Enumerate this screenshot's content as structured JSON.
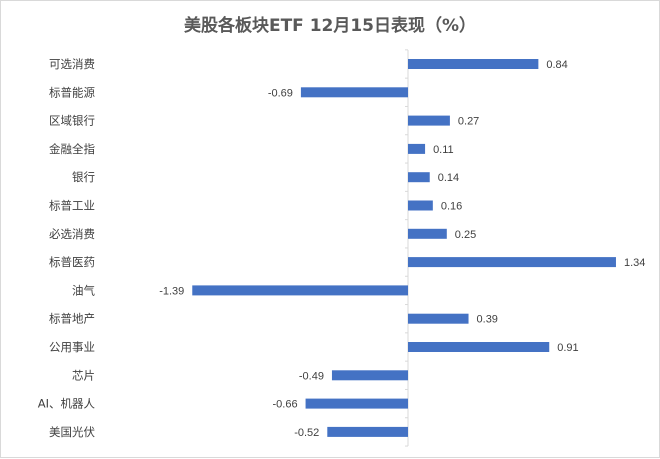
{
  "chart_data": {
    "type": "bar",
    "orientation": "horizontal",
    "title": "美股各板块ETF  12月15日表现（%）",
    "xlabel": "",
    "ylabel": "",
    "categories": [
      "可选消费",
      "标普能源",
      "区域银行",
      "金融全指",
      "银行",
      "标普工业",
      "必选消费",
      "标普医药",
      "油气",
      "标普地产",
      "公用事业",
      "芯片",
      "AI、机器人",
      "美国光伏"
    ],
    "values": [
      0.84,
      -0.69,
      0.27,
      0.11,
      0.14,
      0.16,
      0.25,
      1.34,
      -1.39,
      0.39,
      0.91,
      -0.49,
      -0.66,
      -0.52
    ],
    "data_labels": [
      "0.84",
      "-0.69",
      "0.27",
      "0.11",
      "0.14",
      "0.16",
      "0.25",
      "1.34",
      "-1.39",
      "0.39",
      "0.91",
      "-0.49",
      "-0.66",
      "-0.52"
    ],
    "bar_color": "#4472C4",
    "grid": false,
    "legend": "none"
  }
}
